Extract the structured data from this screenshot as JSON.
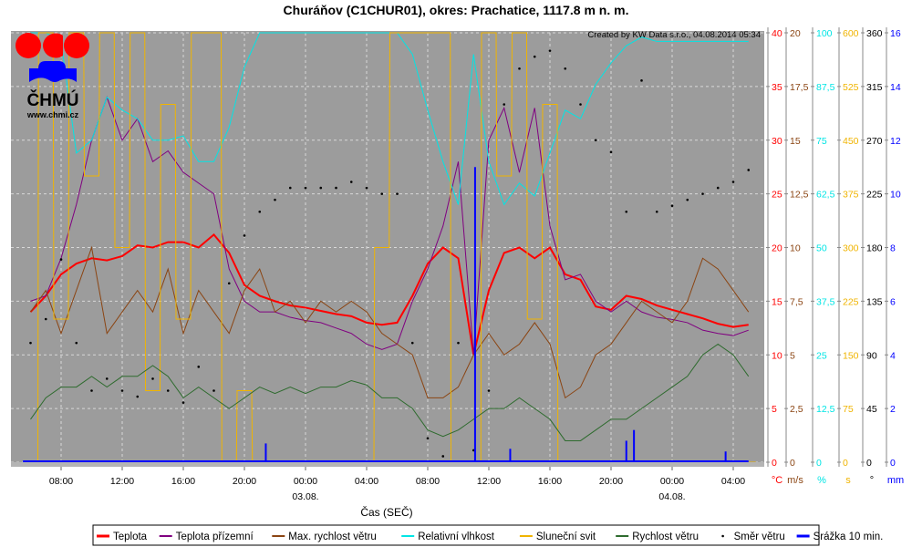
{
  "chart_data": {
    "type": "line",
    "title": "Churáňov (C1CHUR01), okres: Prachatice, 1117.8 m n. m.",
    "credit": "Created by KW Data s.r.o., 04.08.2014 05:34",
    "logo": {
      "name": "ČHMÚ",
      "url": "www.chmi.cz"
    },
    "xlabel": "Čas (SEČ)",
    "x_unit": "hours relative to 03.08. 00:00",
    "xlim": [
      -19.3,
      30
    ],
    "x_ticks": [
      {
        "h": -16,
        "label": "08:00"
      },
      {
        "h": -12,
        "label": "12:00"
      },
      {
        "h": -8,
        "label": "16:00"
      },
      {
        "h": -4,
        "label": "20:00"
      },
      {
        "h": 0,
        "label": "00:00",
        "date": "03.08."
      },
      {
        "h": 4,
        "label": "04:00"
      },
      {
        "h": 8,
        "label": "08:00"
      },
      {
        "h": 12,
        "label": "12:00"
      },
      {
        "h": 16,
        "label": "16:00"
      },
      {
        "h": 20,
        "label": "20:00"
      },
      {
        "h": 24,
        "label": "00:00",
        "date": "04.08."
      },
      {
        "h": 28,
        "label": "04:00"
      }
    ],
    "axes": [
      {
        "unit": "°C",
        "color": "#ff0000",
        "ticks": [
          "0",
          "5",
          "10",
          "15",
          "20",
          "25",
          "30",
          "35",
          "40"
        ],
        "range": [
          0,
          40
        ]
      },
      {
        "unit": "m/s",
        "color": "#8b4513",
        "ticks": [
          "0",
          "2,5",
          "5",
          "7,5",
          "10",
          "12,5",
          "15",
          "17,5",
          "20"
        ],
        "range": [
          0,
          20
        ]
      },
      {
        "unit": "%",
        "color": "#00e5e5",
        "ticks": [
          "0",
          "12,5",
          "25",
          "37,5",
          "50",
          "62,5",
          "75",
          "87,5",
          "100"
        ],
        "range": [
          0,
          100
        ]
      },
      {
        "unit": "s",
        "color": "#f0b400",
        "ticks": [
          "0",
          "75",
          "150",
          "225",
          "300",
          "375",
          "450",
          "525",
          "600"
        ],
        "range": [
          0,
          600
        ]
      },
      {
        "unit": "°",
        "color": "#000000",
        "ticks": [
          "0",
          "45",
          "90",
          "135",
          "180",
          "225",
          "270",
          "315",
          "360"
        ],
        "range": [
          0,
          360
        ]
      },
      {
        "unit": "mm",
        "color": "#0000ff",
        "ticks": [
          "0",
          "2",
          "4",
          "6",
          "8",
          "10",
          "12",
          "14",
          "16"
        ],
        "range": [
          0,
          16
        ]
      }
    ],
    "x_hours_start": -18,
    "series": [
      {
        "name": "Teplota",
        "axis": 0,
        "color": "#ff0000",
        "width": 2,
        "style": "line",
        "values": [
          14.0,
          15.5,
          17.5,
          18.5,
          19.0,
          18.8,
          19.2,
          20.2,
          20.0,
          20.5,
          20.5,
          20.0,
          21.2,
          19.5,
          16.5,
          15.5,
          15.0,
          14.6,
          14.4,
          14.1,
          13.8,
          13.6,
          13.0,
          12.8,
          13.0,
          15.5,
          18.5,
          20.0,
          19.0,
          10.0,
          16.0,
          19.5,
          20.0,
          19.0,
          20.0,
          17.5,
          17.0,
          14.5,
          14.2,
          15.5,
          15.2,
          14.6,
          14.2,
          13.8,
          13.4,
          12.9,
          12.6,
          12.8
        ]
      },
      {
        "name": "Teplota přízemní",
        "axis": 0,
        "color": "#800080",
        "width": 1,
        "style": "line",
        "values": [
          15.0,
          15.5,
          19,
          24,
          30,
          34,
          30,
          32,
          28,
          29,
          27,
          26,
          25,
          18,
          15,
          14,
          14,
          13.5,
          13.2,
          13,
          12.5,
          12,
          11,
          10.5,
          11,
          15,
          18,
          22,
          28,
          10,
          30,
          33,
          27,
          33,
          22,
          17,
          17.5,
          15,
          14,
          15,
          14,
          13.5,
          13.3,
          13,
          12.3,
          12,
          11.8,
          12.3
        ]
      },
      {
        "name": "Max. rychlost větru",
        "axis": 1,
        "color": "#8b4513",
        "width": 1,
        "style": "line",
        "values": [
          7,
          8,
          6,
          8,
          10,
          6,
          7,
          8,
          7,
          9,
          6,
          8,
          7,
          6,
          8,
          9,
          7,
          7.5,
          6.5,
          7.5,
          7,
          7.5,
          7,
          6,
          5.5,
          5,
          3,
          3,
          3.5,
          5,
          6,
          5,
          5.5,
          6.5,
          5.5,
          3,
          3.5,
          5,
          5.5,
          6.5,
          7.5,
          7,
          6.5,
          7.5,
          9.5,
          9,
          8,
          7
        ]
      },
      {
        "name": "Relativní vlhkost",
        "axis": 2,
        "color": "#00e5e5",
        "width": 1,
        "style": "line",
        "values": [
          100,
          100,
          98,
          72,
          75,
          85,
          82,
          80,
          75,
          75,
          76,
          70,
          70,
          78,
          92,
          100,
          100,
          100,
          100,
          100,
          100,
          100,
          100,
          100,
          100,
          95,
          82,
          70,
          60,
          95,
          70,
          60,
          65,
          62,
          72,
          82,
          80,
          88,
          93,
          97,
          99,
          98,
          98,
          98,
          98,
          98,
          98,
          98
        ]
      },
      {
        "name": "Sluneční svit",
        "axis": 3,
        "color": "#f0b400",
        "width": 1,
        "style": "step",
        "values": [
          0,
          600,
          200,
          600,
          400,
          600,
          300,
          600,
          100,
          500,
          200,
          600,
          600,
          0,
          100,
          0,
          0,
          0,
          0,
          0,
          0,
          0,
          0,
          300,
          600,
          600,
          600,
          600,
          0,
          0,
          600,
          400,
          600,
          200,
          500,
          0,
          0,
          0,
          0,
          0,
          0,
          0,
          0,
          0,
          0,
          0,
          0,
          0
        ]
      },
      {
        "name": "Rychlost větru",
        "axis": 1,
        "color": "#2e6b2e",
        "width": 1,
        "style": "line",
        "values": [
          2,
          3,
          3.5,
          3.5,
          4,
          3.5,
          4,
          4,
          4.5,
          4,
          3,
          3.5,
          3,
          2.5,
          3,
          3.5,
          3.2,
          3.5,
          3.2,
          3.5,
          3.5,
          3.8,
          3.6,
          3,
          3,
          2.5,
          1.5,
          1.2,
          1.5,
          2,
          2.5,
          2.5,
          3,
          2.5,
          2,
          1,
          1,
          1.5,
          2,
          2,
          2.5,
          3,
          3.5,
          4,
          5,
          5.5,
          5,
          4
        ]
      },
      {
        "name": "Směr větru",
        "axis": 4,
        "color": "#000000",
        "width": 1,
        "style": "dots",
        "values": [
          100,
          120,
          170,
          100,
          60,
          70,
          60,
          55,
          70,
          60,
          50,
          80,
          60,
          150,
          190,
          210,
          220,
          230,
          230,
          230,
          230,
          235,
          230,
          225,
          225,
          100,
          20,
          5,
          100,
          10,
          60,
          300,
          330,
          340,
          345,
          330,
          300,
          270,
          260,
          210,
          320,
          210,
          215,
          220,
          225,
          230,
          235,
          245
        ]
      },
      {
        "name": "Srážka 10 min.",
        "axis": 5,
        "color": "#0000ff",
        "width": 2,
        "style": "impulse",
        "points": [
          [
            -2.6,
            0.7
          ],
          [
            11.1,
            11
          ],
          [
            13.4,
            0.5
          ],
          [
            21,
            0.8
          ],
          [
            21.5,
            1.2
          ],
          [
            27.5,
            0.4
          ]
        ]
      }
    ]
  }
}
